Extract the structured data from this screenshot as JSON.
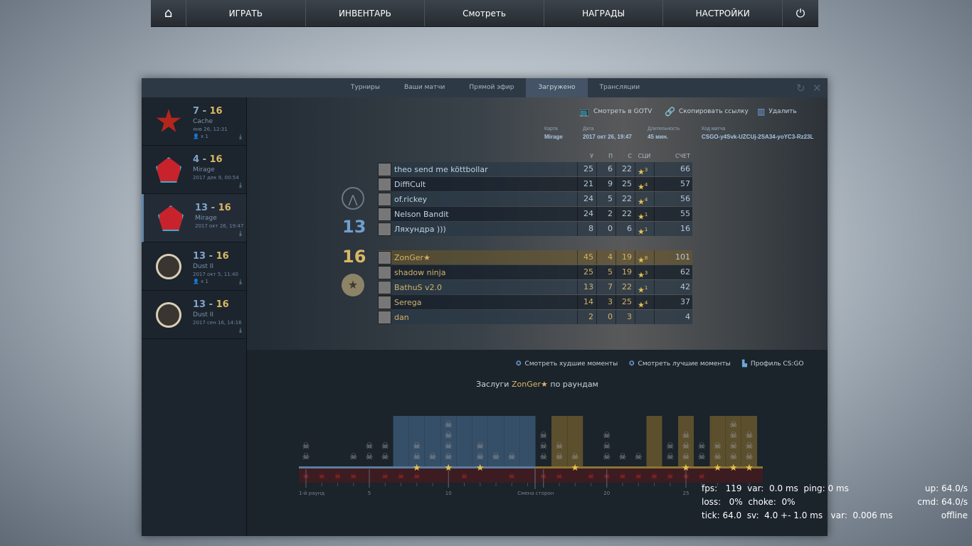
{
  "nav": {
    "items": [
      {
        "icon": "home-icon"
      },
      {
        "label": "ИГРАТЬ"
      },
      {
        "label": "ИНВЕНТАРЬ"
      },
      {
        "label": "Смотреть"
      },
      {
        "label": "НАГРАДЫ"
      },
      {
        "label": "НАСТРОЙКИ"
      },
      {
        "icon": "power-icon"
      }
    ]
  },
  "tabs": [
    "Турниры",
    "Ваши матчи",
    "Прямой эфир",
    "Загружено",
    "Трансляции"
  ],
  "active_tab": "Загружено",
  "matches": [
    {
      "a": "7",
      "b": "16",
      "map": "Cache",
      "date": "янв 26, 12:31",
      "viewers": "x 1",
      "color": "#b3261e"
    },
    {
      "a": "4",
      "b": "16",
      "map": "Mirage",
      "date": "2017 дек 9, 00:54",
      "viewers": "",
      "color": "#c8232c"
    },
    {
      "a": "13",
      "b": "16",
      "map": "Mirage",
      "date": "2017 окт 26, 19:47",
      "viewers": "",
      "color": "#c8232c",
      "selected": true
    },
    {
      "a": "13",
      "b": "16",
      "map": "Dust II",
      "date": "2017 окт 5, 11:40",
      "viewers": "x 1",
      "color": "#3a3530"
    },
    {
      "a": "13",
      "b": "16",
      "map": "Dust II",
      "date": "2017 сен 16, 14:16",
      "viewers": "",
      "color": "#3a3530"
    }
  ],
  "actions": {
    "gotv": "Смотреть в GOTV",
    "copy": "Скопировать ссылку",
    "delete": "Удалить"
  },
  "meta": {
    "map_l": "Карта",
    "map": "Mirage",
    "date_l": "Дата",
    "date": "2017 окт 26, 19:47",
    "dur_l": "Длительность",
    "dur": "45 мин.",
    "code_l": "Код матча",
    "code": "CSGO-y4Svk-UZCUj-2SA34-yoYC3-Rz23L"
  },
  "headers": [
    "У",
    "П",
    "С",
    "СЦИ",
    "СЧЕТ"
  ],
  "team1": {
    "score": "13",
    "color": "#6f9fd0",
    "players": [
      [
        "theo send me köttbollar",
        "25",
        "6",
        "22",
        "3",
        "66"
      ],
      [
        "DiffiCult",
        "21",
        "9",
        "25",
        "4",
        "57"
      ],
      [
        "of.rickey",
        "24",
        "5",
        "22",
        "4",
        "56"
      ],
      [
        "Nelson Bandit",
        "24",
        "2",
        "22",
        "1",
        "55"
      ],
      [
        "Ляхундра )))",
        "8",
        "0",
        "6",
        "1",
        "16"
      ]
    ]
  },
  "team2": {
    "score": "16",
    "color": "#d9b765",
    "players": [
      [
        "ZonGer★",
        "45",
        "4",
        "19",
        "8",
        "101"
      ],
      [
        "shadow ninja",
        "25",
        "5",
        "19",
        "3",
        "62"
      ],
      [
        "BathuS v2.0",
        "13",
        "7",
        "22",
        "1",
        "42"
      ],
      [
        "Serega",
        "14",
        "3",
        "25",
        "4",
        "37"
      ],
      [
        "dan",
        "2",
        "0",
        "3",
        "",
        "4"
      ]
    ]
  },
  "lower": {
    "worst": "Смотреть худшие моменты",
    "best": "Смотреть лучшие моменты",
    "profile": "Профиль CS:GO",
    "title_pre": "Заслуги ",
    "player": "ZonGer★",
    "title_post": " по раундам"
  },
  "chart_data": {
    "type": "bar",
    "title": "Заслуги ZonGer★ по раундам",
    "tick_labels": {
      "1": "1-й раунд",
      "5": "5",
      "10": "10",
      "16": "Смена сторон",
      "20": "20",
      "25": "25"
    },
    "rounds": [
      1,
      2,
      3,
      4,
      5,
      6,
      7,
      8,
      9,
      10,
      11,
      12,
      13,
      14,
      15,
      16,
      17,
      18,
      19,
      20,
      21,
      22,
      23,
      24,
      25,
      26,
      27,
      28,
      29
    ],
    "kills": [
      2,
      0,
      0,
      1,
      2,
      2,
      0,
      2,
      1,
      4,
      0,
      2,
      1,
      1,
      0,
      3,
      2,
      1,
      0,
      3,
      1,
      1,
      0,
      2,
      3,
      2,
      2,
      4,
      3
    ],
    "died": [
      1,
      1,
      1,
      1,
      0,
      1,
      1,
      1,
      0,
      0,
      1,
      0,
      0,
      1,
      0,
      1,
      1,
      0,
      1,
      1,
      1,
      1,
      1,
      1,
      1,
      1,
      0,
      0,
      0
    ],
    "mvp": [
      0,
      0,
      0,
      0,
      0,
      0,
      0,
      1,
      0,
      1,
      0,
      1,
      0,
      0,
      0,
      0,
      0,
      1,
      0,
      0,
      0,
      0,
      0,
      0,
      1,
      0,
      1,
      1,
      1
    ],
    "highlight": [
      "",
      "",
      "",
      "",
      "",
      "",
      "blue",
      "blue",
      "blue",
      "blue",
      "blue",
      "blue",
      "blue",
      "blue",
      "blue",
      "",
      "gold",
      "gold",
      "",
      "",
      "",
      "",
      "gold",
      "",
      "gold",
      "",
      "gold",
      "gold",
      "gold"
    ],
    "colors": {
      "blue": "#3d5a78",
      "gold": "#6b5a2e",
      "skull": "#9a9a9a",
      "death": "#c0282c",
      "star": "#e8c04c"
    }
  },
  "net": {
    "l1": "fps:   119  var:  0.0 ms  ping: 0 ms",
    "l2": "loss:   0%  choke:  0%",
    "l3": "tick: 64.0  sv:  4.0 +- 1.0 ms   var:  0.006 ms",
    "r1": "up: 64.0/s",
    "r2": "cmd: 64.0/s",
    "r3": "offline"
  }
}
